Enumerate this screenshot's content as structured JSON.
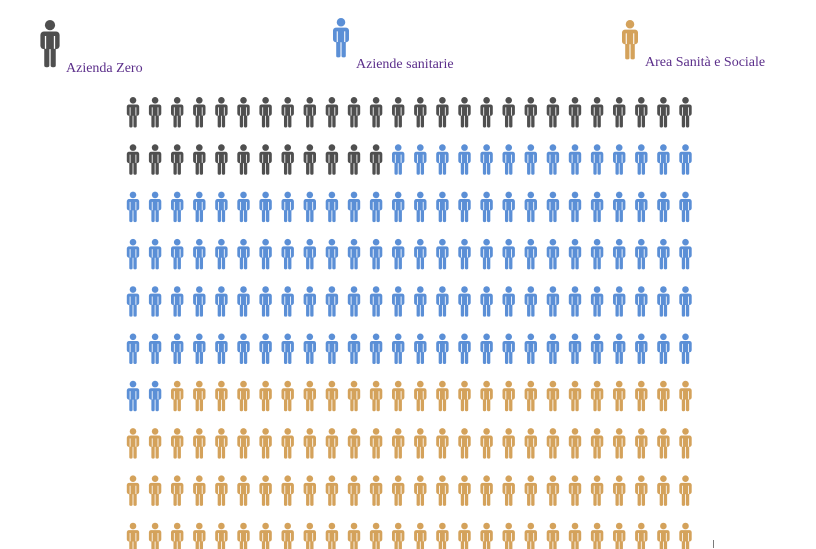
{
  "chart_data": {
    "type": "waffle",
    "unit": "person-icon",
    "columns": 26,
    "rows": 10,
    "total_icons": 260,
    "series": [
      {
        "name": "Azienda Zero",
        "count": 38,
        "color": "#4f4f4f",
        "icon": "person-icon"
      },
      {
        "name": "Aziende sanitarie",
        "count": 120,
        "color": "#5b8fd6",
        "icon": "person-icon"
      },
      {
        "name": "Area Sanità e Sociale",
        "count": 102,
        "color": "#d4a25b",
        "icon": "person-icon"
      }
    ],
    "legend": {
      "placement": "top",
      "items": [
        {
          "label": "Azienda Zero",
          "color": "#4f4f4f"
        },
        {
          "label": "Aziende sanitarie",
          "color": "#5b8fd6"
        },
        {
          "label": "Area Sanità e Sociale",
          "color": "#d4a25b"
        }
      ]
    },
    "fill_order": "row-major"
  }
}
